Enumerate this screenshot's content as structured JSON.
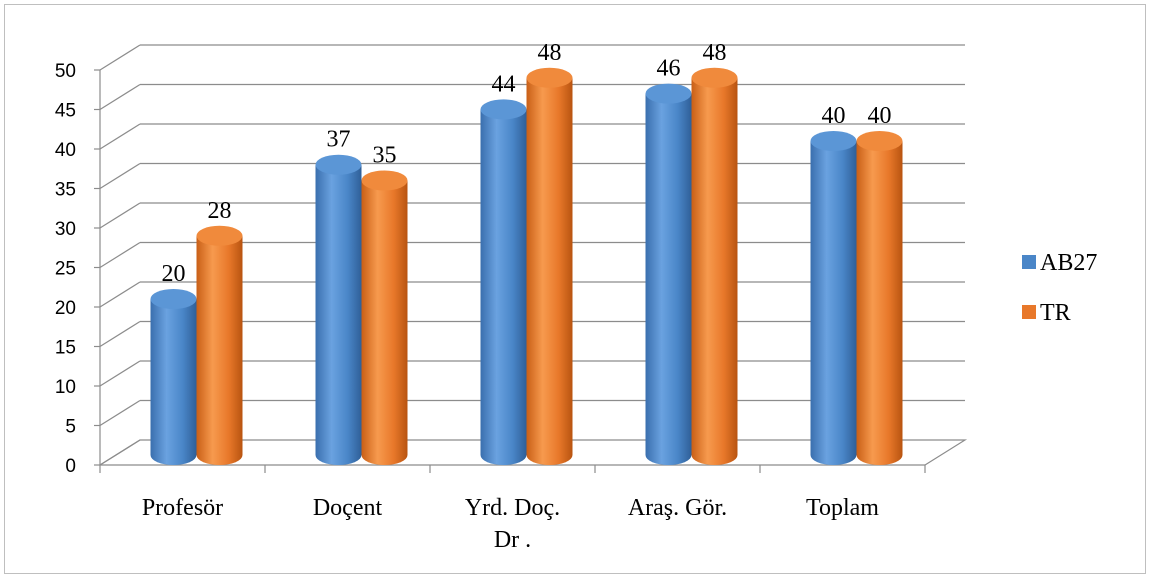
{
  "chart_data": {
    "type": "bar",
    "style": "3d-cylinder",
    "categories": [
      "Profesör",
      "Doçent",
      "Yrd. Doç. Dr .",
      "Araş. Gör.",
      "Toplam"
    ],
    "category_label_lines": [
      [
        "Profesör"
      ],
      [
        "Doçent"
      ],
      [
        "Yrd. Doç.",
        "Dr ."
      ],
      [
        "Araş. Gör."
      ],
      [
        "Toplam"
      ]
    ],
    "series": [
      {
        "name": "AB27",
        "values": [
          20,
          37,
          44,
          46,
          40
        ],
        "color": "#4a86c8"
      },
      {
        "name": "TR",
        "values": [
          28,
          35,
          48,
          48,
          40
        ],
        "color": "#e8782a"
      }
    ],
    "ylim": [
      0,
      50
    ],
    "yticks": [
      0,
      5,
      10,
      15,
      20,
      25,
      30,
      35,
      40,
      45,
      50
    ],
    "grid": true,
    "legend_position": "right",
    "title": "",
    "xlabel": "",
    "ylabel": ""
  }
}
